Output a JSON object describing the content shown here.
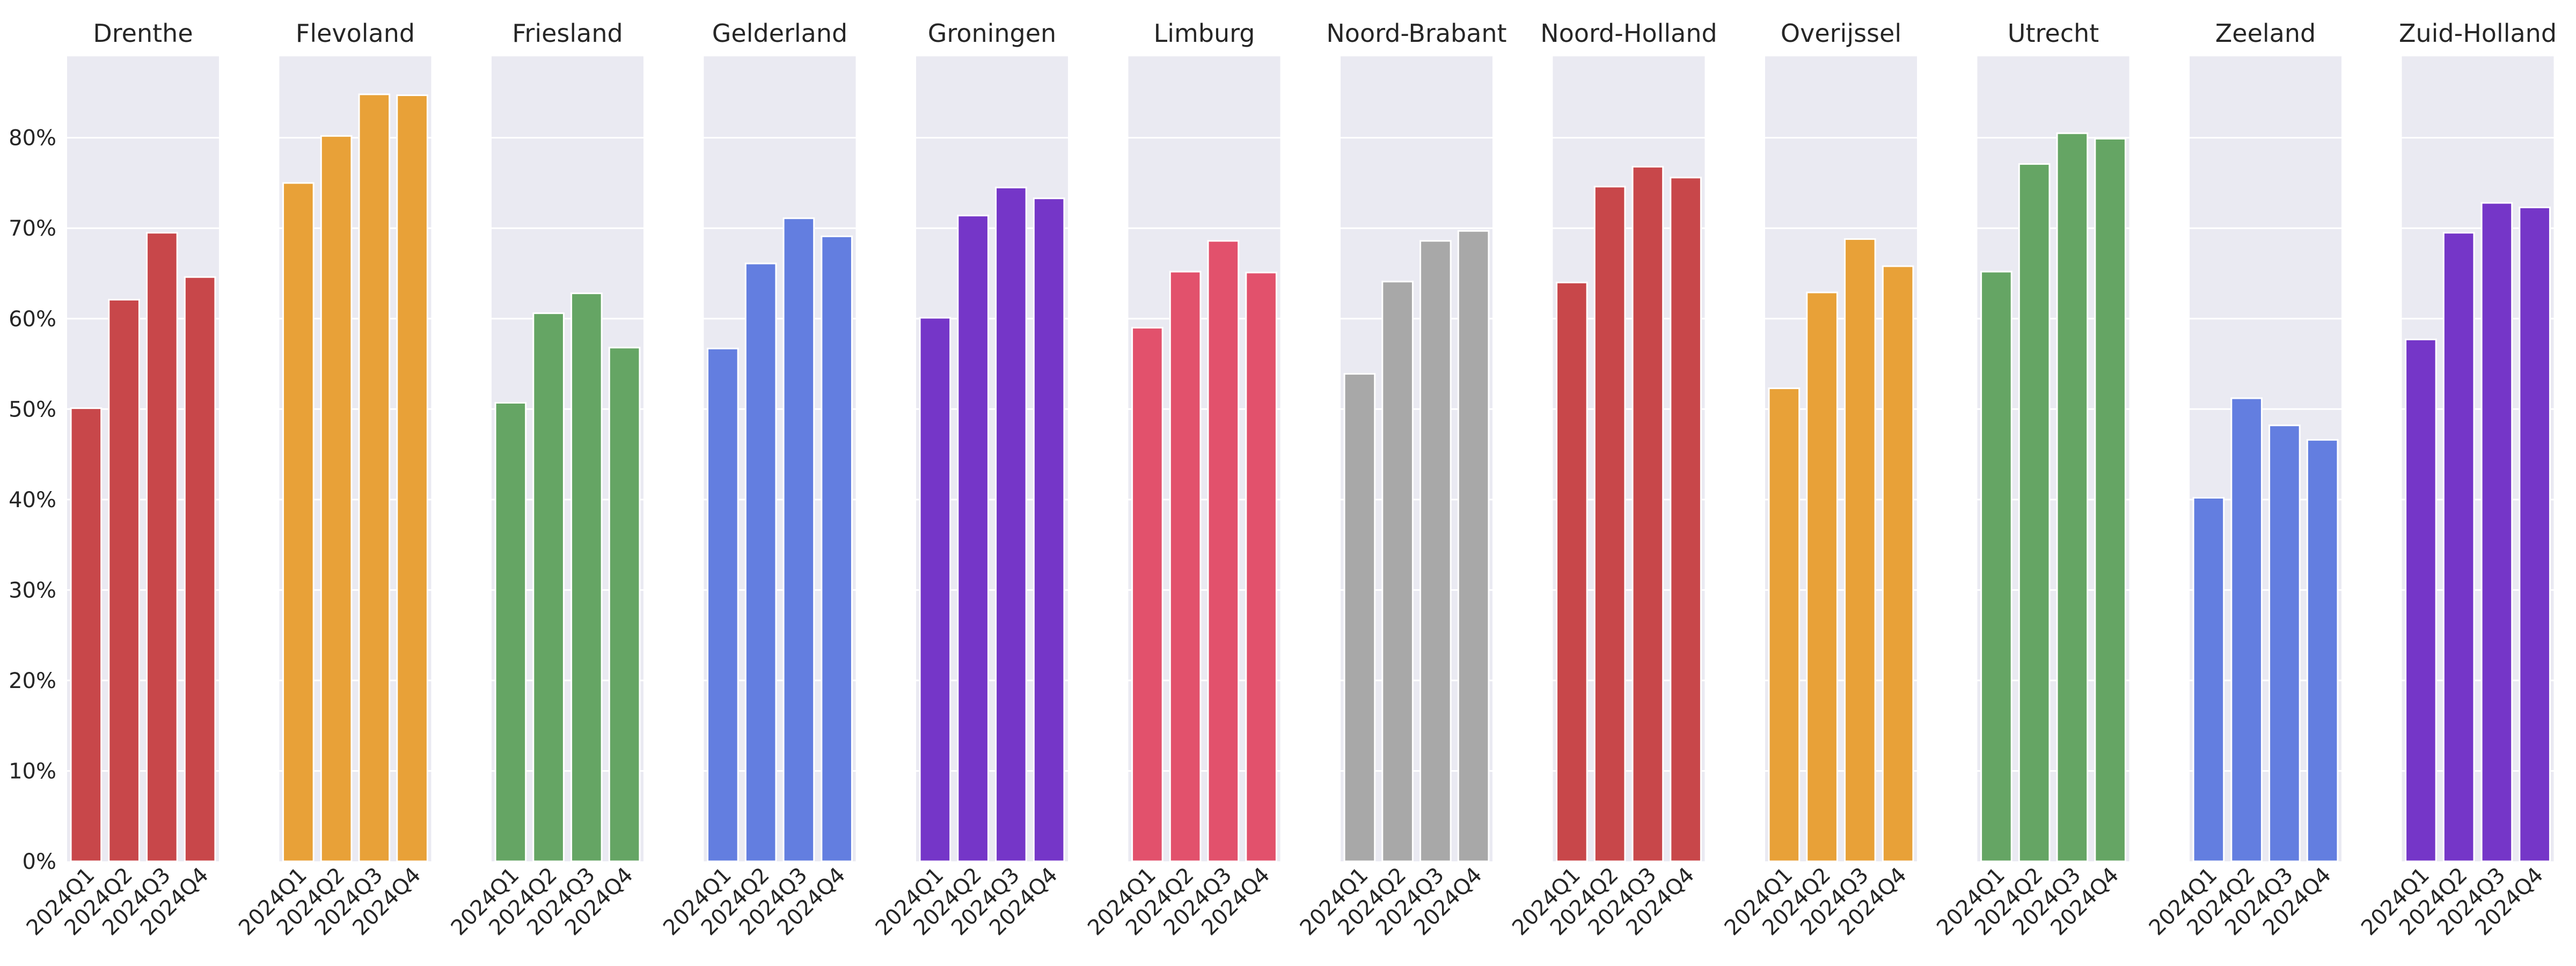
{
  "chart_data": {
    "type": "bar",
    "title": "",
    "xlabel": "",
    "ylabel": "",
    "ylim": [
      0,
      0.89
    ],
    "yticks": [
      0,
      0.1,
      0.2,
      0.3,
      0.4,
      0.5,
      0.6,
      0.7,
      0.8
    ],
    "ytick_labels": [
      "0%",
      "10%",
      "20%",
      "30%",
      "40%",
      "50%",
      "60%",
      "70%",
      "80%"
    ],
    "grid": true,
    "categories": [
      "2024Q1",
      "2024Q2",
      "2024Q3",
      "2024Q4"
    ],
    "panels": [
      {
        "title": "Drenthe",
        "color": "#c8474a",
        "values": [
          0.501,
          0.621,
          0.695,
          0.646
        ]
      },
      {
        "title": "Flevoland",
        "color": "#e8a138",
        "values": [
          0.75,
          0.802,
          0.848,
          0.847
        ]
      },
      {
        "title": "Friesland",
        "color": "#65a564",
        "values": [
          0.507,
          0.606,
          0.628,
          0.568
        ]
      },
      {
        "title": "Gelderland",
        "color": "#637ee0",
        "values": [
          0.567,
          0.661,
          0.711,
          0.691
        ]
      },
      {
        "title": "Groningen",
        "color": "#7536c8",
        "values": [
          0.601,
          0.714,
          0.745,
          0.733
        ]
      },
      {
        "title": "Limburg",
        "color": "#e2516c",
        "values": [
          0.59,
          0.652,
          0.686,
          0.651
        ]
      },
      {
        "title": "Noord-Brabant",
        "color": "#a8a8a8",
        "values": [
          0.539,
          0.641,
          0.686,
          0.697
        ]
      },
      {
        "title": "Noord-Holland",
        "color": "#c8474a",
        "values": [
          0.64,
          0.746,
          0.768,
          0.756
        ]
      },
      {
        "title": "Overijssel",
        "color": "#e8a138",
        "values": [
          0.523,
          0.629,
          0.688,
          0.658
        ]
      },
      {
        "title": "Utrecht",
        "color": "#65a564",
        "values": [
          0.652,
          0.771,
          0.805,
          0.799
        ]
      },
      {
        "title": "Zeeland",
        "color": "#637ee0",
        "values": [
          0.402,
          0.512,
          0.482,
          0.466
        ]
      },
      {
        "title": "Zuid-Holland",
        "color": "#7536c8",
        "values": [
          0.577,
          0.695,
          0.728,
          0.723
        ]
      }
    ]
  }
}
